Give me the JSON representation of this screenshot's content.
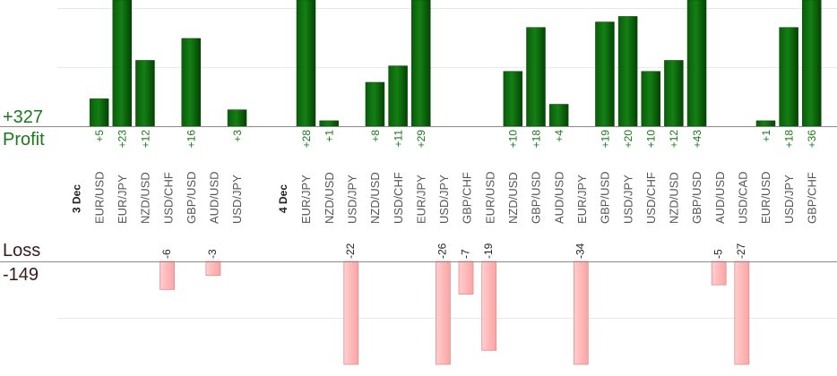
{
  "summary": {
    "profit_total": "+327",
    "profit_label": "Profit",
    "loss_label": "Loss",
    "loss_total": "-149"
  },
  "colors": {
    "profit_bar": "#0e6f0e",
    "profit_bar_dark": "#064a06",
    "profit_text": "#1a7a1a",
    "loss_bar": "#ffbcbc",
    "loss_bar_border": "#e88a8a",
    "loss_text": "#222222",
    "date_text": "#222222",
    "pair_text": "#555555",
    "gridline": "#e8e8e8",
    "axis": "#8a8a8a"
  },
  "chart_data": {
    "type": "bar",
    "profit_ylim": [
      0,
      23
    ],
    "loss_ylim": [
      0,
      22
    ],
    "grid": true,
    "slots": [
      {
        "kind": "date",
        "label": "3 Dec"
      },
      {
        "kind": "trade",
        "pair": "EUR/USD",
        "value": 5,
        "label": "+5"
      },
      {
        "kind": "trade",
        "pair": "EUR/JPY",
        "value": 23,
        "label": "+23"
      },
      {
        "kind": "trade",
        "pair": "NZD/USD",
        "value": 12,
        "label": "+12"
      },
      {
        "kind": "trade",
        "pair": "USD/CHF",
        "value": -6,
        "label": "-6"
      },
      {
        "kind": "trade",
        "pair": "GBP/USD",
        "value": 16,
        "label": "+16"
      },
      {
        "kind": "trade",
        "pair": "AUD/USD",
        "value": -3,
        "label": "-3"
      },
      {
        "kind": "trade",
        "pair": "USD/JPY",
        "value": 3,
        "label": "+3"
      },
      {
        "kind": "gap"
      },
      {
        "kind": "date",
        "label": "4 Dec"
      },
      {
        "kind": "trade",
        "pair": "EUR/JPY",
        "value": 28,
        "label": "+28"
      },
      {
        "kind": "trade",
        "pair": "NZD/USD",
        "value": 1,
        "label": "+1"
      },
      {
        "kind": "trade",
        "pair": "USD/JPY",
        "value": -22,
        "label": "-22"
      },
      {
        "kind": "trade",
        "pair": "NZD/USD",
        "value": 8,
        "label": "+8"
      },
      {
        "kind": "trade",
        "pair": "USD/CHF",
        "value": 11,
        "label": "+11"
      },
      {
        "kind": "trade",
        "pair": "EUR/JPY",
        "value": 29,
        "label": "+29"
      },
      {
        "kind": "trade",
        "pair": "USD/JPY",
        "value": -26,
        "label": "-26"
      },
      {
        "kind": "trade",
        "pair": "GBP/CHF",
        "value": -7,
        "label": "-7"
      },
      {
        "kind": "trade",
        "pair": "EUR/USD",
        "value": -19,
        "label": "-19"
      },
      {
        "kind": "trade",
        "pair": "NZD/USD",
        "value": 10,
        "label": "+10"
      },
      {
        "kind": "trade",
        "pair": "GBP/USD",
        "value": 18,
        "label": "+18"
      },
      {
        "kind": "trade",
        "pair": "AUD/USD",
        "value": 4,
        "label": "+4"
      },
      {
        "kind": "trade",
        "pair": "EUR/JPY",
        "value": -34,
        "label": "-34"
      },
      {
        "kind": "trade",
        "pair": "GBP/USD",
        "value": 19,
        "label": "+19"
      },
      {
        "kind": "trade",
        "pair": "USD/JPY",
        "value": 20,
        "label": "+20"
      },
      {
        "kind": "trade",
        "pair": "USD/CHF",
        "value": 10,
        "label": "+10"
      },
      {
        "kind": "trade",
        "pair": "NZD/USD",
        "value": 12,
        "label": "+12"
      },
      {
        "kind": "trade",
        "pair": "GBP/USD",
        "value": 43,
        "label": "+43"
      },
      {
        "kind": "trade",
        "pair": "AUD/USD",
        "value": -5,
        "label": "-5"
      },
      {
        "kind": "trade",
        "pair": "USD/CAD",
        "value": -27,
        "label": "-27"
      },
      {
        "kind": "trade",
        "pair": "EUR/USD",
        "value": 1,
        "label": "+1"
      },
      {
        "kind": "trade",
        "pair": "USD/JPY",
        "value": 18,
        "label": "+18"
      },
      {
        "kind": "trade",
        "pair": "GBP/CHF",
        "value": 36,
        "label": "+36"
      }
    ]
  }
}
